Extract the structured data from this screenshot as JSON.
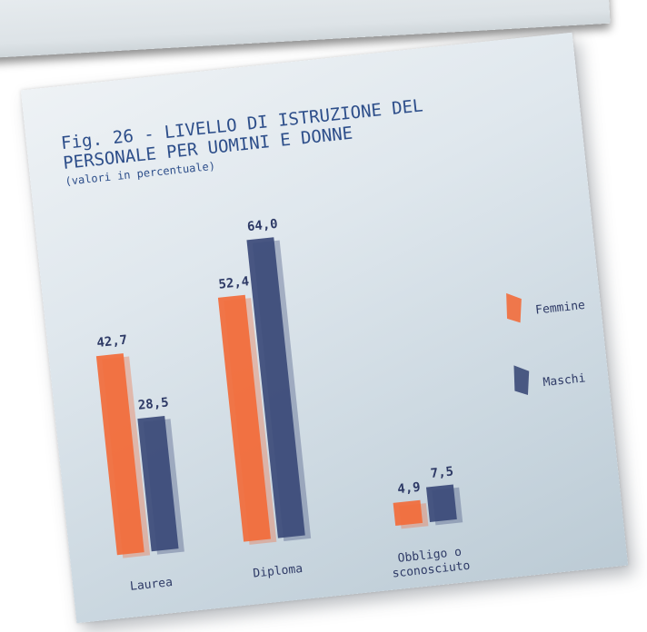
{
  "chart_data": {
    "type": "bar",
    "title": "Fig. 26 - LIVELLO DI ISTRUZIONE DEL\nPERSONALE PER UOMINI E DONNE",
    "subtitle": "(valori in percentuale)",
    "categories": [
      "Laurea",
      "Diploma",
      "Obbligo o\nsconosciuto"
    ],
    "series": [
      {
        "name": "Femmine",
        "values": [
          42.7,
          52.4,
          4.9
        ],
        "labels": [
          "42,7",
          "52,4",
          "4,9"
        ],
        "color": "#f26b3a"
      },
      {
        "name": "Maschi",
        "values": [
          28.5,
          64.0,
          7.5
        ],
        "labels": [
          "28,5",
          "64,0",
          "7,5"
        ],
        "color": "#3b4a78"
      }
    ],
    "ylim": [
      0,
      64
    ],
    "legend_position": "right",
    "grid": false
  }
}
